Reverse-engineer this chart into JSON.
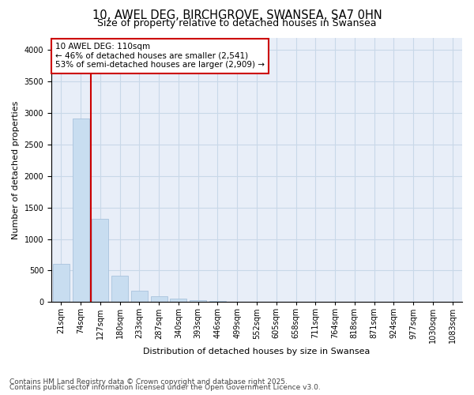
{
  "title_line1": "10, AWEL DEG, BIRCHGROVE, SWANSEA, SA7 0HN",
  "title_line2": "Size of property relative to detached houses in Swansea",
  "xlabel": "Distribution of detached houses by size in Swansea",
  "ylabel": "Number of detached properties",
  "categories": [
    "21sqm",
    "74sqm",
    "127sqm",
    "180sqm",
    "233sqm",
    "287sqm",
    "340sqm",
    "393sqm",
    "446sqm",
    "499sqm",
    "552sqm",
    "605sqm",
    "658sqm",
    "711sqm",
    "764sqm",
    "818sqm",
    "871sqm",
    "924sqm",
    "977sqm",
    "1030sqm",
    "1083sqm"
  ],
  "values": [
    600,
    2920,
    1320,
    420,
    175,
    90,
    50,
    30,
    20,
    5,
    2,
    1,
    0,
    0,
    0,
    0,
    0,
    0,
    0,
    0,
    0
  ],
  "bar_color": "#c8ddf0",
  "bar_edge_color": "#a0bcd8",
  "vline_color": "#cc0000",
  "annotation_text_line1": "10 AWEL DEG: 110sqm",
  "annotation_text_line2": "← 46% of detached houses are smaller (2,541)",
  "annotation_text_line3": "53% of semi-detached houses are larger (2,909) →",
  "annotation_box_color": "#cc0000",
  "ylim": [
    0,
    4200
  ],
  "yticks": [
    0,
    500,
    1000,
    1500,
    2000,
    2500,
    3000,
    3500,
    4000
  ],
  "grid_color": "#c8d8e8",
  "plot_bg_color": "#e8eef8",
  "fig_bg_color": "#ffffff",
  "footer_line1": "Contains HM Land Registry data © Crown copyright and database right 2025.",
  "footer_line2": "Contains public sector information licensed under the Open Government Licence v3.0.",
  "title_fontsize": 10.5,
  "subtitle_fontsize": 9,
  "axis_label_fontsize": 8,
  "tick_fontsize": 7,
  "annotation_fontsize": 7.5,
  "footer_fontsize": 6.5
}
